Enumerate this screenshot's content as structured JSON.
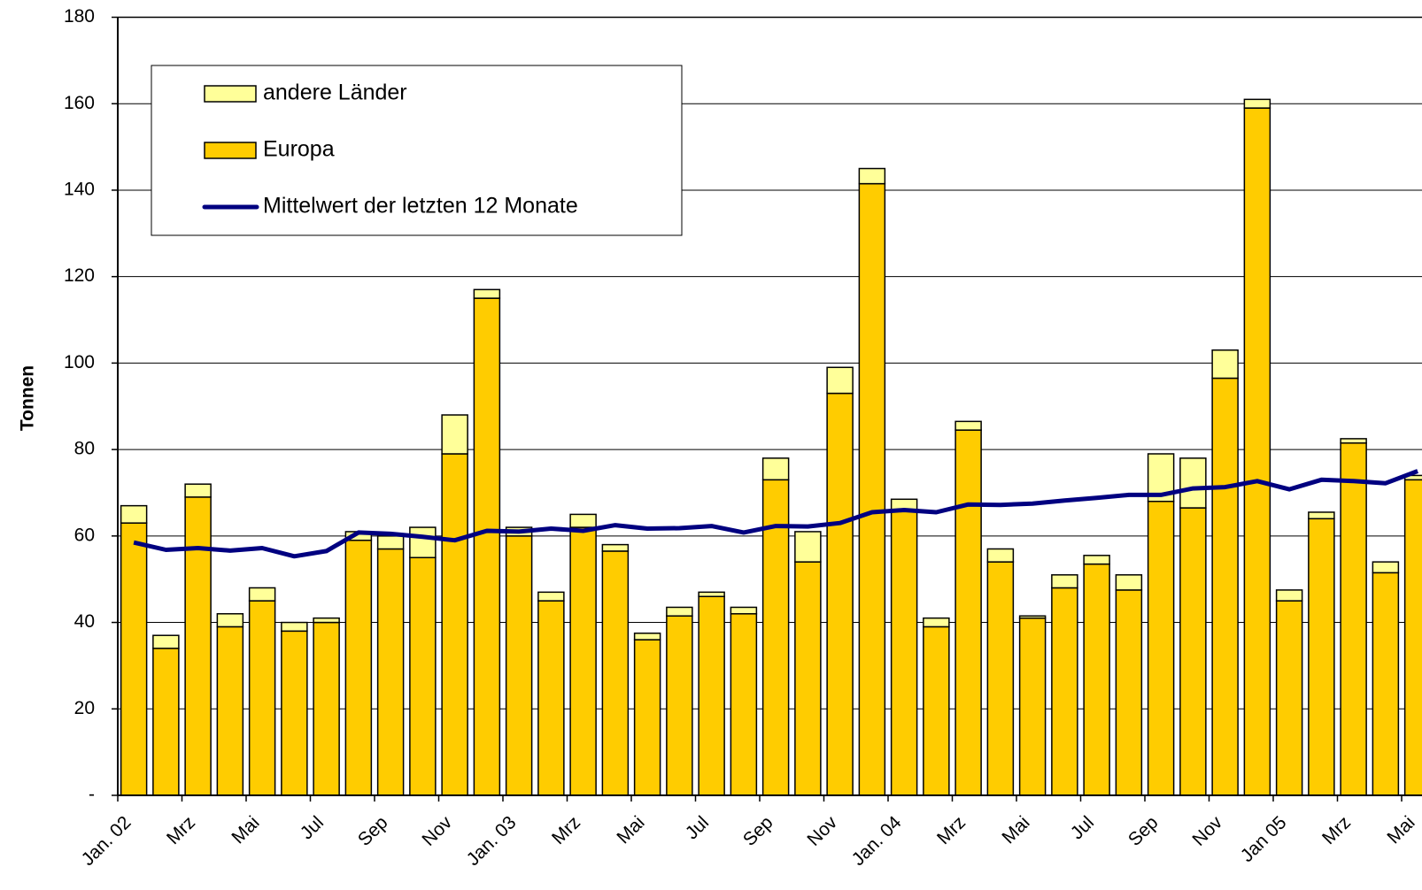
{
  "chart_data": {
    "type": "bar",
    "stacked": true,
    "y_label": "Tonnen",
    "categories": [
      "Jan. 02",
      null,
      "Mrz",
      null,
      "Mai",
      null,
      "Jul",
      null,
      "Sep",
      null,
      "Nov",
      null,
      "Jan. 03",
      null,
      "Mrz",
      null,
      "Mai",
      null,
      "Jul",
      null,
      "Sep",
      null,
      "Nov",
      null,
      "Jan. 04",
      null,
      "Mrz",
      null,
      "Mai",
      null,
      "Jul",
      null,
      "Sep",
      null,
      "Nov",
      null,
      "Jan 05",
      null,
      "Mrz",
      null,
      "Mai"
    ],
    "series": [
      {
        "name": "Europa",
        "color": "#FFCC00",
        "values": [
          63,
          34,
          69,
          39,
          45,
          38,
          40,
          59,
          57,
          55,
          79,
          115,
          60,
          45,
          62,
          56.5,
          36,
          41.5,
          46,
          42,
          73,
          54,
          93,
          141.5,
          66,
          39,
          84.5,
          54,
          41,
          48,
          53.5,
          47.5,
          68,
          66.5,
          96.5,
          159,
          45,
          64,
          81.5,
          51.5,
          73
        ]
      },
      {
        "name": "andere Länder",
        "color": "#FFFF99",
        "values": [
          4,
          3,
          3,
          3,
          3,
          2,
          1,
          2,
          3,
          7,
          9,
          2,
          2,
          2,
          3,
          1.5,
          1.5,
          2,
          1,
          1.5,
          5,
          7,
          6,
          3.5,
          2.5,
          2,
          2,
          3,
          0.5,
          3,
          2,
          3.5,
          11,
          11.5,
          6.5,
          2,
          2.5,
          1.5,
          1,
          2.5,
          1
        ]
      },
      {
        "name": "Mittelwert der letzten 12 Monate",
        "type": "line",
        "color": "#000080",
        "values": [
          58.5,
          56.8,
          57.2,
          56.6,
          57.2,
          55.3,
          56.5,
          60.8,
          60.5,
          59.8,
          59,
          61.2,
          61,
          61.7,
          61.2,
          62.5,
          61.7,
          61.8,
          62.3,
          60.8,
          62.3,
          62.2,
          63,
          65.5,
          66,
          65.5,
          67.3,
          67.2,
          67.5,
          68.2,
          68.8,
          69.5,
          69.5,
          71,
          71.3,
          72.7,
          70.8,
          73,
          72.7,
          72.2,
          75
        ]
      }
    ],
    "ylim": [
      0,
      180
    ],
    "yticks": [
      {
        "value": 0,
        "label": "-"
      },
      20,
      40,
      60,
      80,
      100,
      120,
      140,
      160,
      180
    ],
    "grid": true
  }
}
